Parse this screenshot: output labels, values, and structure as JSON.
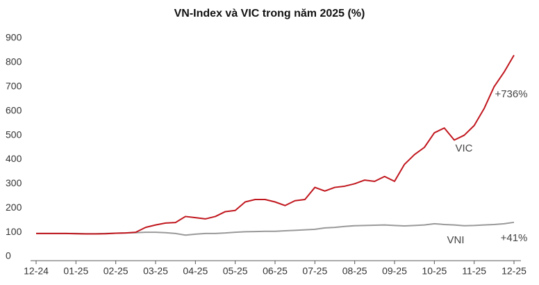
{
  "chart_data": {
    "type": "line",
    "title": "VN-Index và VIC trong năm 2025 (%)",
    "categories": [
      "12-24",
      null,
      null,
      null,
      "01-25",
      null,
      null,
      null,
      "02-25",
      null,
      null,
      null,
      "03-25",
      null,
      null,
      null,
      "04-25",
      null,
      null,
      null,
      "05-25",
      null,
      null,
      null,
      "06-25",
      null,
      null,
      null,
      "07-25",
      null,
      null,
      null,
      "08-25",
      null,
      null,
      null,
      "09-25",
      null,
      null,
      null,
      "10-25",
      null,
      null,
      null,
      "11-25",
      null,
      null,
      null,
      "12-25"
    ],
    "series": [
      {
        "name": "VIC",
        "color": "#c0161d",
        "values": [
          95,
          95,
          95,
          95,
          94,
          93,
          93,
          94,
          96,
          97,
          100,
          120,
          130,
          138,
          140,
          165,
          160,
          155,
          165,
          185,
          190,
          225,
          235,
          235,
          225,
          210,
          230,
          235,
          285,
          270,
          285,
          290,
          300,
          315,
          310,
          330,
          310,
          380,
          420,
          450,
          510,
          530,
          480,
          500,
          540,
          610,
          700,
          760,
          830
        ]
      },
      {
        "name": "VNI",
        "color": "#999999",
        "values": [
          95,
          95,
          95,
          95,
          95,
          94,
          94,
          95,
          96,
          97,
          98,
          100,
          100,
          98,
          95,
          88,
          92,
          95,
          95,
          97,
          100,
          102,
          103,
          104,
          104,
          106,
          108,
          110,
          112,
          118,
          120,
          124,
          127,
          128,
          129,
          130,
          128,
          126,
          128,
          130,
          135,
          132,
          130,
          127,
          128,
          130,
          132,
          135,
          141
        ]
      }
    ],
    "annotations": [
      "VIC",
      "+736%",
      "VNI",
      "+41%"
    ],
    "ylim": [
      0,
      900
    ],
    "yticks": [
      0,
      100,
      200,
      300,
      400,
      500,
      600,
      700,
      800,
      900
    ],
    "grid": false
  }
}
